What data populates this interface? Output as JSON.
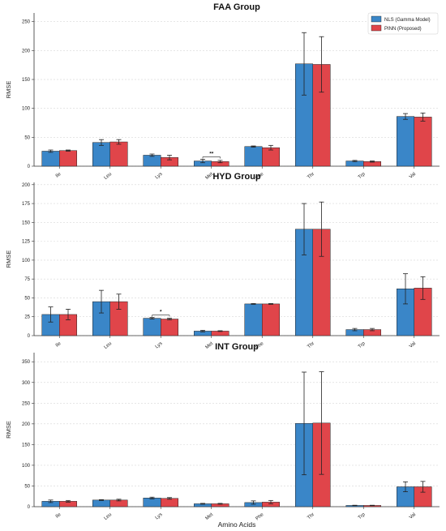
{
  "chart_data": [
    {
      "type": "bar",
      "title": "FAA Group",
      "xlabel": "",
      "ylabel": "RMSE",
      "categories": [
        "Ile",
        "Leu",
        "Lys",
        "Met",
        "Phe",
        "Thr",
        "Trp",
        "Val"
      ],
      "ylim": [
        0,
        265
      ],
      "yticks": [
        0,
        50,
        100,
        150,
        200,
        250
      ],
      "grid": true,
      "legend": "top-right",
      "series": [
        {
          "name": "NLS (Gamma Model)",
          "color": "#3a86c8",
          "values": [
            26,
            41,
            19,
            9,
            34,
            177,
            9,
            86
          ],
          "errors": [
            2,
            5,
            2,
            3,
            1,
            54,
            1,
            5
          ]
        },
        {
          "name": "PINN (Proposed)",
          "color": "#e0454a",
          "values": [
            27,
            42,
            15,
            8,
            32,
            176,
            8,
            85
          ],
          "errors": [
            1,
            4,
            4,
            2,
            4,
            48,
            1,
            7
          ]
        }
      ],
      "annotations": [
        {
          "category": "Met",
          "text": "**"
        }
      ]
    },
    {
      "type": "bar",
      "title": "HYD Group",
      "xlabel": "",
      "ylabel": "RMSE",
      "categories": [
        "Ile",
        "Leu",
        "Lys",
        "Met",
        "Phe",
        "Thr",
        "Trp",
        "Val"
      ],
      "ylim": [
        0,
        203
      ],
      "yticks": [
        0,
        25,
        50,
        75,
        100,
        125,
        150,
        175,
        200
      ],
      "grid": true,
      "series": [
        {
          "name": "NLS (Gamma Model)",
          "color": "#3a86c8",
          "values": [
            28,
            45,
            23,
            6,
            42,
            141,
            8,
            62
          ],
          "errors": [
            10,
            15,
            1,
            1,
            0.5,
            34,
            1.5,
            20
          ]
        },
        {
          "name": "PINN (Proposed)",
          "color": "#e0454a",
          "values": [
            28,
            45,
            22,
            6,
            42,
            141,
            8,
            63
          ],
          "errors": [
            7,
            10,
            1,
            0.5,
            0.5,
            36,
            1.5,
            15
          ]
        }
      ],
      "annotations": [
        {
          "category": "Lys",
          "text": "*"
        }
      ]
    },
    {
      "type": "bar",
      "title": "INT Group",
      "xlabel": "Amino Acids",
      "ylabel": "RMSE",
      "categories": [
        "Ile",
        "Leu",
        "Lys",
        "Met",
        "Phe",
        "Thr",
        "Trp",
        "Val"
      ],
      "ylim": [
        0,
        372
      ],
      "yticks": [
        0,
        50,
        100,
        150,
        200,
        250,
        300,
        350
      ],
      "grid": true,
      "series": [
        {
          "name": "NLS (Gamma Model)",
          "color": "#3a86c8",
          "values": [
            13,
            16,
            21,
            7,
            10,
            201,
            3,
            48
          ],
          "errors": [
            3,
            1,
            2,
            1,
            4,
            124,
            0.5,
            12
          ]
        },
        {
          "name": "PINN (Proposed)",
          "color": "#e0454a",
          "values": [
            13,
            16,
            20,
            7,
            11,
            202,
            3,
            48
          ],
          "errors": [
            2,
            2,
            2,
            1,
            4,
            124,
            0.5,
            13
          ]
        }
      ],
      "annotations": []
    }
  ]
}
